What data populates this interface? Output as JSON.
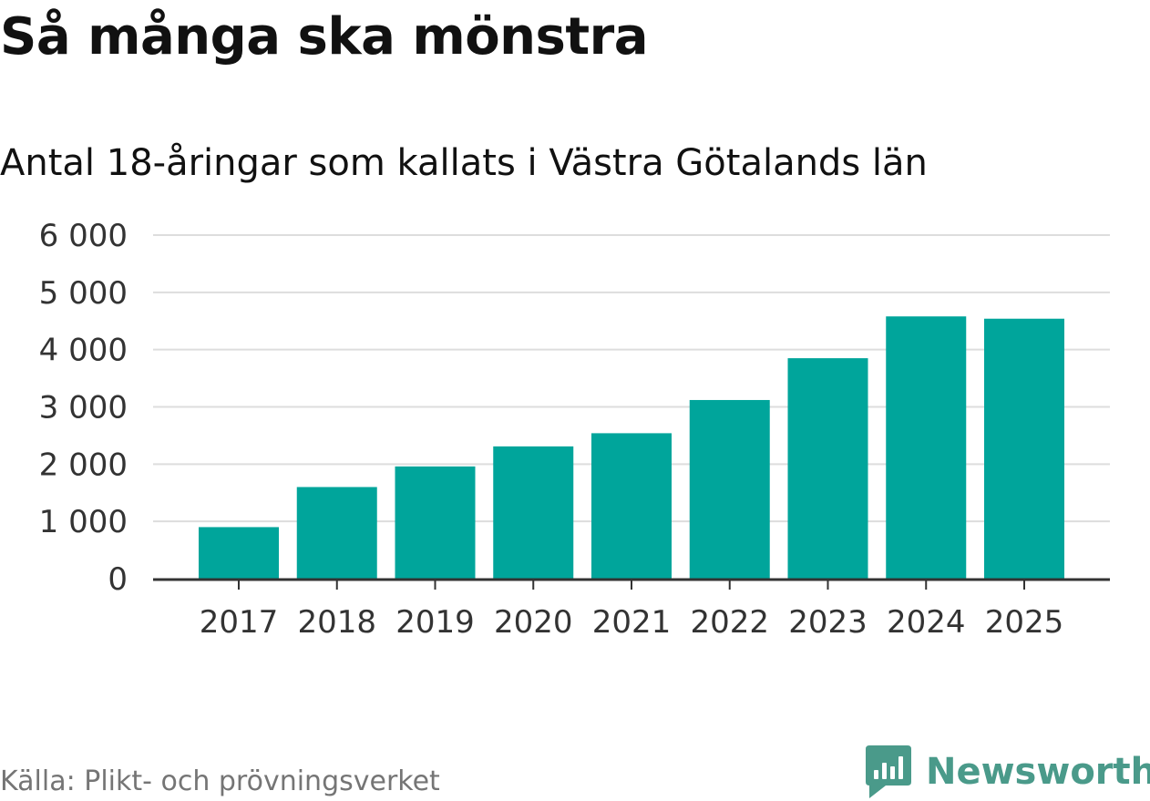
{
  "header": {
    "title": "Så många ska mönstra",
    "subtitle": "Antal 18-åringar som kallats i Västra Götalands län"
  },
  "footer": {
    "source": "Källa: Plikt- och prövningsverket",
    "brand": "Newsworthy",
    "brand_icon": "newsworthy-logo-icon"
  },
  "colors": {
    "bar": "#00a59b",
    "grid": "#dddddd",
    "axis": "#333333",
    "brand": "#4a9a8a"
  },
  "chart_data": {
    "type": "bar",
    "title": "Så många ska mönstra",
    "subtitle": "Antal 18-åringar som kallats i Västra Götalands län",
    "categories": [
      "2017",
      "2018",
      "2019",
      "2020",
      "2021",
      "2022",
      "2023",
      "2024",
      "2025"
    ],
    "values": [
      900,
      1600,
      1960,
      2310,
      2540,
      3120,
      3850,
      4580,
      4540
    ],
    "xlabel": "",
    "ylabel": "",
    "ylim": [
      0,
      6000
    ],
    "yticks": [
      0,
      1000,
      2000,
      3000,
      4000,
      5000,
      6000
    ],
    "ytick_labels": [
      "0",
      "1 000",
      "2 000",
      "3 000",
      "4 000",
      "5 000",
      "6 000"
    ],
    "grid": true,
    "legend": "none"
  }
}
